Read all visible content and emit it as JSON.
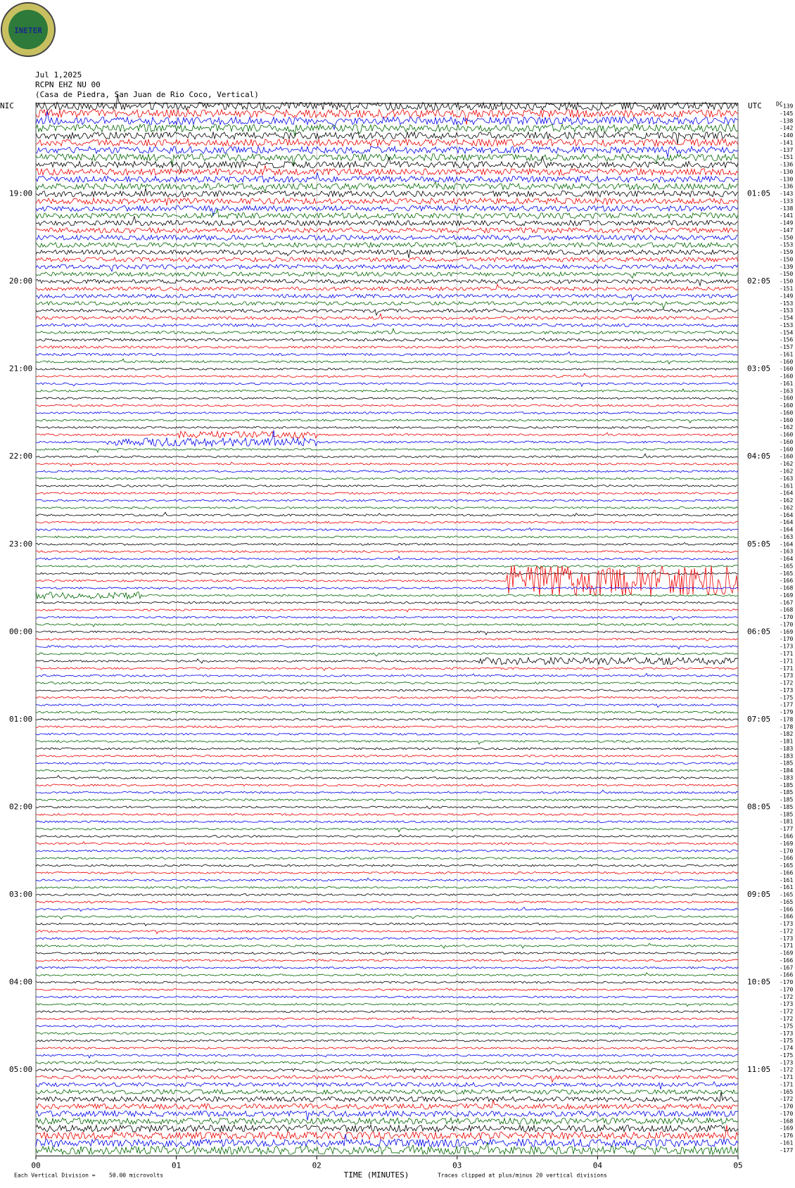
{
  "header": {
    "logo": "INETER",
    "date": "Jul 1,2025",
    "station": "RCPN EHZ NU 00",
    "location": "(Casa de Piedra, San Juan de Rio Coco, Vertical)"
  },
  "left_header": "NIC",
  "right_header": "UTC",
  "dc_header": "DC",
  "left_hours": [
    "19:00",
    "20:00",
    "21:00",
    "22:00",
    "23:00",
    "00:00",
    "01:00",
    "02:00",
    "03:00",
    "04:00",
    "05:00"
  ],
  "right_hours": [
    "01:05",
    "02:05",
    "03:05",
    "04:05",
    "05:05",
    "06:05",
    "07:05",
    "08:05",
    "09:05",
    "10:05",
    "11:05"
  ],
  "trace_offsets": [
    -139,
    -145,
    -138,
    -142,
    -140,
    -141,
    -137,
    -151,
    -136,
    -130,
    -130,
    -136,
    -143,
    -133,
    -138,
    -141,
    -149,
    -147,
    -150,
    -153,
    -159,
    -150,
    -139,
    -150,
    -150,
    -151,
    -149,
    -153,
    -153,
    -154,
    -153,
    -154,
    -156,
    -157,
    -161,
    -160,
    -160,
    -160,
    -161,
    -163,
    -160,
    -160,
    -160,
    -160,
    -162,
    -160,
    -160,
    -160,
    -160,
    -162,
    -162,
    -163,
    -161,
    -164,
    -162,
    -162,
    -164,
    -164,
    -164,
    -163,
    -164,
    -163,
    -164,
    -165,
    -165,
    -166,
    -168,
    -169,
    -167,
    -168,
    -170,
    -170,
    -169,
    -170,
    -173,
    -171,
    -171,
    -171,
    -173,
    -172,
    -173,
    -175,
    -177,
    -179,
    -178,
    -178,
    -182,
    -181,
    -183,
    -183,
    -185,
    -184,
    -183,
    -185,
    -185,
    -185,
    -185,
    -185,
    -181,
    -177,
    -166,
    -169,
    -170,
    -166,
    -165,
    -166,
    -161,
    -161,
    -165,
    -165,
    -166,
    -166,
    -173,
    -172,
    -173,
    -171,
    -169,
    -166,
    -167,
    -166,
    -170,
    -170,
    -172,
    -173,
    -172,
    -172,
    -175,
    -173,
    -175,
    -174,
    -175,
    -173,
    -172,
    -171,
    -171,
    -165,
    -172,
    -170,
    -170,
    -168,
    -169,
    -176,
    -161,
    -177
  ],
  "x_axis": {
    "ticks": [
      "00",
      "01",
      "02",
      "03",
      "04",
      "05"
    ],
    "label": "TIME (MINUTES)"
  },
  "footer": {
    "division": "Each Vertical Division =",
    "division_value": "50.00 microvolts",
    "clip": "Traces clipped at plus/minus 20 vertical divisions"
  }
}
